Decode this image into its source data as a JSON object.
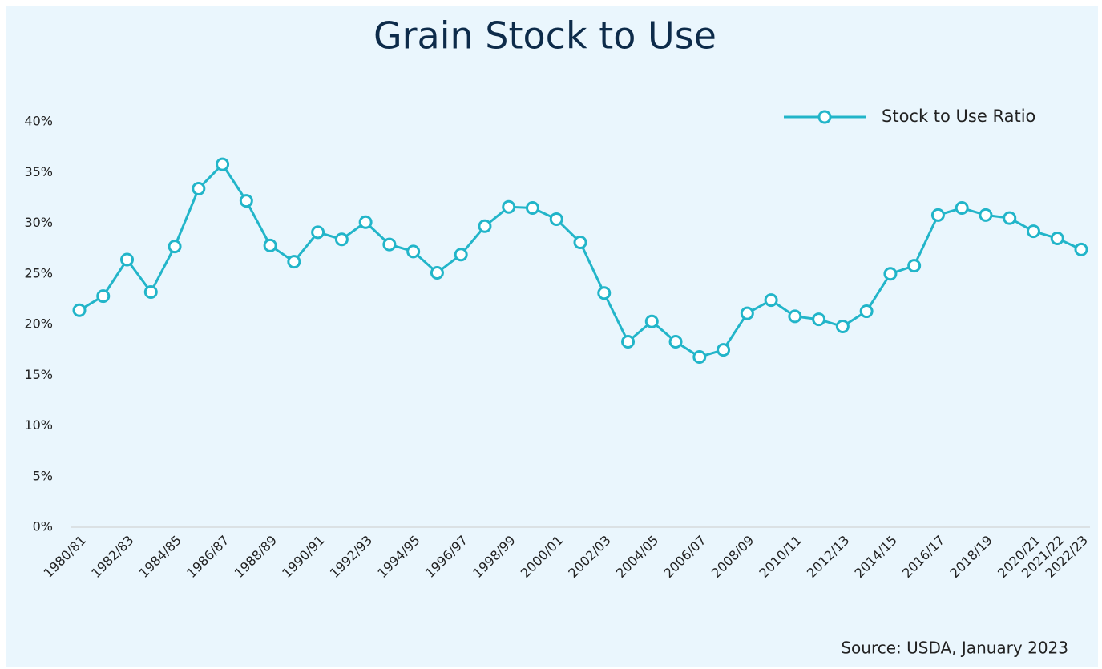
{
  "chart_data": {
    "type": "line",
    "title": "Grain Stock to Use",
    "source": "Source: USDA, January 2023",
    "categories": [
      "1980/81",
      null,
      "1982/83",
      null,
      "1984/85",
      null,
      "1986/87",
      null,
      "1988/89",
      null,
      "1990/91",
      null,
      "1992/93",
      null,
      "1994/95",
      null,
      "1996/97",
      null,
      "1998/99",
      null,
      "2000/01",
      null,
      "2002/03",
      null,
      "2004/05",
      null,
      "2006/07",
      null,
      "2008/09",
      null,
      "2010/11",
      null,
      "2012/13",
      null,
      "2014/15",
      null,
      "2016/17",
      null,
      "2018/19",
      null,
      "2020/21",
      "2021/22",
      "2022/23"
    ],
    "series": [
      {
        "name": "Stock to Use Ratio",
        "color": "#22b5c9",
        "values": [
          21.4,
          22.8,
          26.4,
          23.2,
          27.7,
          33.4,
          35.8,
          32.2,
          27.8,
          26.2,
          29.1,
          28.4,
          30.1,
          27.9,
          27.2,
          25.1,
          26.9,
          29.7,
          31.6,
          31.5,
          30.4,
          28.1,
          23.1,
          18.3,
          20.3,
          18.3,
          16.8,
          17.5,
          21.1,
          22.4,
          20.8,
          20.5,
          19.8,
          21.3,
          25.0,
          25.8,
          30.8,
          31.5,
          30.8,
          30.5,
          29.2,
          28.5,
          27.4
        ]
      }
    ],
    "ylim": [
      0,
      40
    ],
    "yticks": [
      {
        "value": 0,
        "label": "0%"
      },
      {
        "value": 5,
        "label": "5%"
      },
      {
        "value": 10,
        "label": "10%"
      },
      {
        "value": 15,
        "label": "15%"
      },
      {
        "value": 20,
        "label": "20%"
      },
      {
        "value": 25,
        "label": "25%"
      },
      {
        "value": 30,
        "label": "30%"
      },
      {
        "value": 35,
        "label": "35%"
      },
      {
        "value": 40,
        "label": "40%"
      }
    ],
    "legend": "top-right"
  }
}
